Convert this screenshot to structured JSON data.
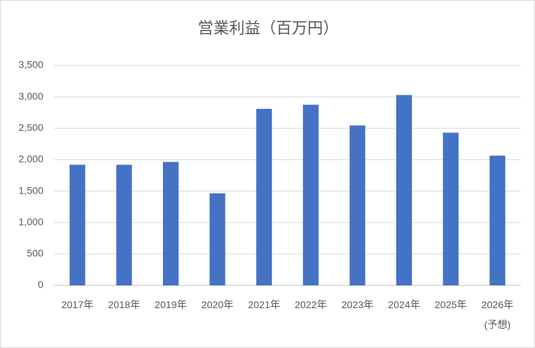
{
  "chart_data": {
    "type": "bar",
    "title": "営業利益（百万円）",
    "categories": [
      "2017年",
      "2018年",
      "2019年",
      "2020年",
      "2021年",
      "2022年",
      "2023年",
      "2024年",
      "2025年",
      "2026年(予想)"
    ],
    "values": [
      1920,
      1920,
      1965,
      1465,
      2810,
      2875,
      2545,
      3030,
      2430,
      2065
    ],
    "color": "#4472c4",
    "ylim": [
      0,
      3500
    ],
    "yticks": [
      0,
      {
        "value": 500,
        "label": "500"
      },
      {
        "value": 1000,
        "label": "1,000"
      },
      {
        "value": 1500,
        "label": "1,500"
      },
      {
        "value": 2000,
        "label": "2,000"
      },
      {
        "value": 2500,
        "label": "2,500"
      },
      {
        "value": 3000,
        "label": "3,000"
      },
      {
        "value": 3500,
        "label": "3,500"
      }
    ],
    "grid": true
  }
}
